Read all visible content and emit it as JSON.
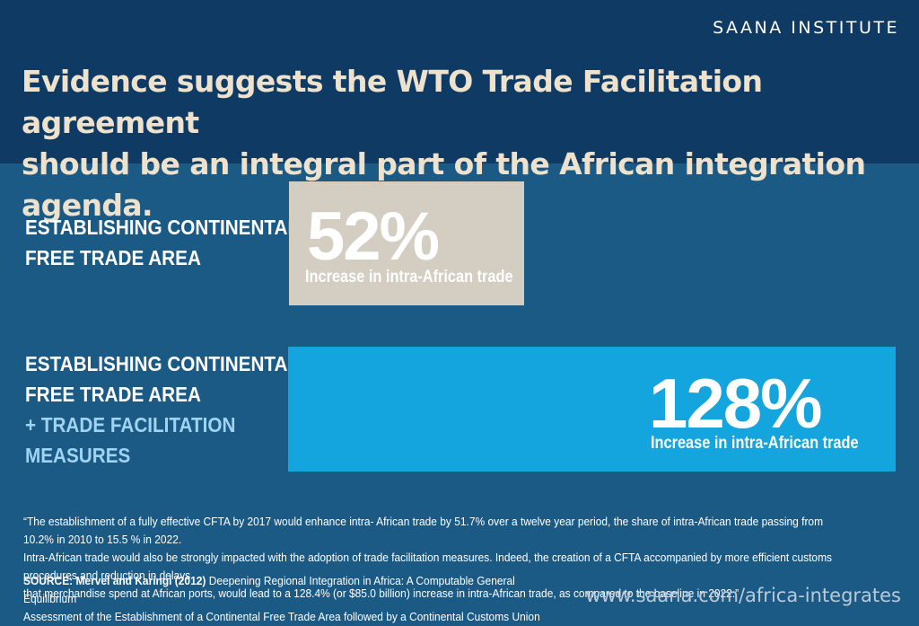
{
  "header": {
    "org": "SAANA INSTITUTE",
    "headline_line1": "Evidence suggests the WTO Trade Facilitation agreement",
    "headline_line2": "should be an integral part of the African integration agenda."
  },
  "rows": [
    {
      "label_line1": "ESTABLISHING CONTINENTAL",
      "label_line2": "FREE TRADE AREA"
    },
    {
      "label_line1": "ESTABLISHING CONTINENTAL",
      "label_line2": "FREE TRADE AREA",
      "extra_line1": "+ TRADE FACILITATION",
      "extra_line2": "MEASURES"
    }
  ],
  "chart_data": {
    "type": "bar",
    "orientation": "horizontal",
    "categories": [
      "ESTABLISHING CONTINENTAL FREE TRADE AREA",
      "ESTABLISHING CONTINENTAL FREE TRADE AREA + TRADE FACILITATION MEASURES"
    ],
    "values": [
      52,
      128
    ],
    "value_labels": [
      "52%",
      "128%"
    ],
    "caption": "Increase in intra-African trade",
    "unit": "%",
    "colors": [
      "#d4cdc2",
      "#14a4de"
    ]
  },
  "footer": {
    "quote_line1": "“The establishment of a fully effective CFTA by 2017 would enhance intra- African trade by 51.7% over a twelve year period, the share of intra-African trade passing from 10.2% in 2010 to 15.5 % in 2022.",
    "quote_line2": " Intra-African trade would also be strongly impacted with the adoption of trade facilitation measures. Indeed, the creation of a CFTA accompanied by more efficient customs procedures and reduction in delays",
    "quote_line3": "that merchandise spend at African ports, would lead to a 128.4% (or $85.0 billion) increase in intra-African trade, as compared to the baseline in 2022.”",
    "source_label": "SOURCE: Mervel and Karingi (2012)",
    "source_line1": " Deepening Regional Integration in Africa: A Computable General Equilibrium",
    "source_line2": "Assessment of the Establishment of a Continental Free Trade Area followed by a Continental Customs Union",
    "url": "www.saana.com/africa-integrates"
  }
}
